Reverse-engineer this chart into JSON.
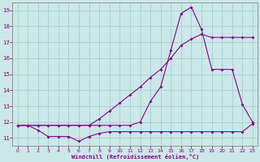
{
  "xlabel": "Windchill (Refroidissement éolien,°C)",
  "xlim": [
    -0.5,
    23.5
  ],
  "ylim": [
    10.5,
    19.5
  ],
  "yticks": [
    11,
    12,
    13,
    14,
    15,
    16,
    17,
    18,
    19
  ],
  "xticks": [
    0,
    1,
    2,
    3,
    4,
    5,
    6,
    7,
    8,
    9,
    10,
    11,
    12,
    13,
    14,
    15,
    16,
    17,
    18,
    19,
    20,
    21,
    22,
    23
  ],
  "bg_color": "#cce8e8",
  "line_color": "#880088",
  "line1_x": [
    0,
    1,
    2,
    3,
    4,
    5,
    6,
    7,
    8,
    9,
    10,
    11,
    12,
    13,
    14,
    15,
    16,
    17,
    18,
    19,
    20,
    21,
    22,
    23
  ],
  "line1_y": [
    11.8,
    11.8,
    11.5,
    11.1,
    11.1,
    11.1,
    10.8,
    11.1,
    11.3,
    11.4,
    11.4,
    11.4,
    11.4,
    11.4,
    11.4,
    11.4,
    11.4,
    11.4,
    11.4,
    11.4,
    11.4,
    11.4,
    11.4,
    11.9
  ],
  "line2_x": [
    0,
    1,
    2,
    3,
    4,
    5,
    6,
    7,
    8,
    9,
    10,
    11,
    12,
    13,
    14,
    15,
    16,
    17,
    18,
    19,
    20,
    21,
    22,
    23
  ],
  "line2_y": [
    11.8,
    11.8,
    11.8,
    11.8,
    11.8,
    11.8,
    11.8,
    11.8,
    12.2,
    12.7,
    13.2,
    13.7,
    14.2,
    14.8,
    15.3,
    16.0,
    16.8,
    17.2,
    17.5,
    17.3,
    17.3,
    17.3,
    17.3,
    17.3
  ],
  "line3_x": [
    0,
    1,
    2,
    3,
    4,
    5,
    6,
    7,
    8,
    9,
    10,
    11,
    12,
    13,
    14,
    15,
    16,
    17,
    18,
    19,
    20,
    21,
    22,
    23
  ],
  "line3_y": [
    11.8,
    11.8,
    11.8,
    11.8,
    11.8,
    11.8,
    11.8,
    11.8,
    11.8,
    11.8,
    11.8,
    11.8,
    12.0,
    13.3,
    14.2,
    16.5,
    18.8,
    19.2,
    17.8,
    15.3,
    15.3,
    15.3,
    13.1,
    12.0
  ]
}
